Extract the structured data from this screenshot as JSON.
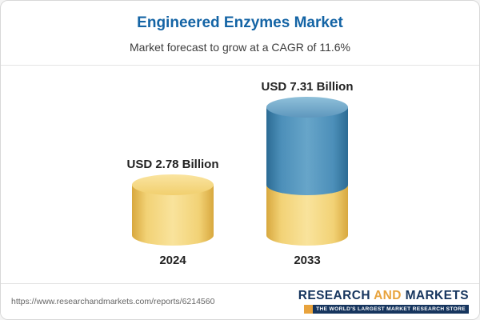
{
  "header": {
    "title": "Engineered Enzymes Market",
    "subtitle": "Market forecast to grow at a CAGR of 11.6%"
  },
  "chart_data": {
    "type": "bar",
    "categories": [
      "2024",
      "2033"
    ],
    "values": [
      2.78,
      7.31
    ],
    "value_labels": [
      "USD 2.78 Billion",
      "USD 7.31 Billion"
    ],
    "unit": "USD Billion",
    "cagr_pct": 11.6,
    "title": "Engineered Enzymes Market",
    "xlabel": "",
    "ylabel": "",
    "legend": "none",
    "colors": {
      "bar_2024": "#f0cf70",
      "bar_2033_lower": "#f0cf70",
      "bar_2033_upper": "#4c8fb9",
      "title_accent": "#1464a5"
    }
  },
  "footer": {
    "url": "https://www.researchandmarkets.com/reports/6214560",
    "logo": {
      "word_research": "RESEARCH",
      "word_and": "AND",
      "word_markets": "MARKETS",
      "tagline": "THE WORLD'S LARGEST MARKET RESEARCH STORE"
    }
  }
}
